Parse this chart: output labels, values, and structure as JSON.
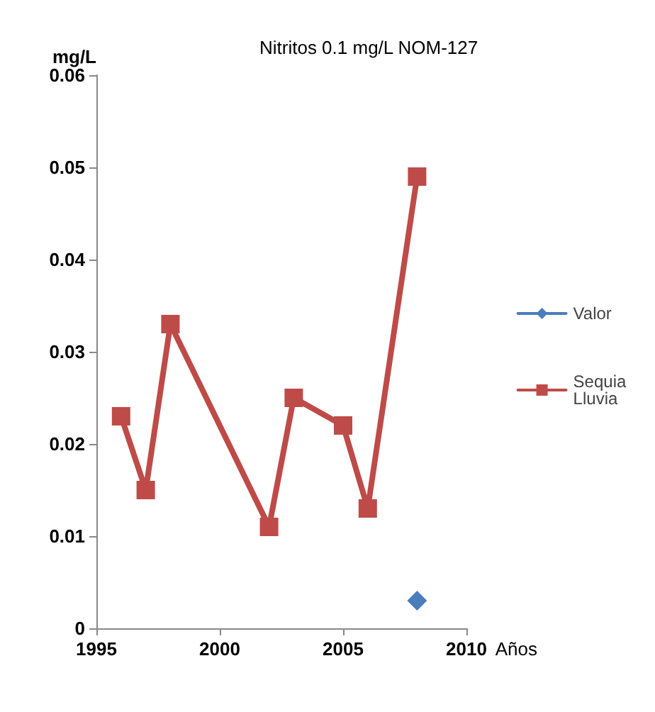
{
  "chart_data": {
    "type": "line",
    "title": "Nitritos 0.1 mg/L NOM-127",
    "ylabel": "mg/L",
    "xlabel": "Años",
    "xlim": [
      1995,
      2010
    ],
    "xticks": [
      1995,
      2000,
      2005,
      2010
    ],
    "ylim": [
      0,
      0.06
    ],
    "yticks": [
      0,
      0.01,
      0.02,
      0.03,
      0.04,
      0.05,
      0.06
    ],
    "grid": false,
    "legend": "right",
    "line_style": "solid",
    "series": [
      {
        "name": "Valor",
        "color": "#4a7ebb",
        "marker": "diamond",
        "x": [
          2008
        ],
        "values": [
          0.003
        ]
      },
      {
        "name": "Sequia Lluvia",
        "color": "#be4b48",
        "marker": "square",
        "x": [
          1996,
          1997,
          1998,
          2002,
          2003,
          2005,
          2006,
          2008
        ],
        "values": [
          0.023,
          0.015,
          0.033,
          0.011,
          0.025,
          0.022,
          0.013,
          0.049
        ]
      }
    ]
  }
}
